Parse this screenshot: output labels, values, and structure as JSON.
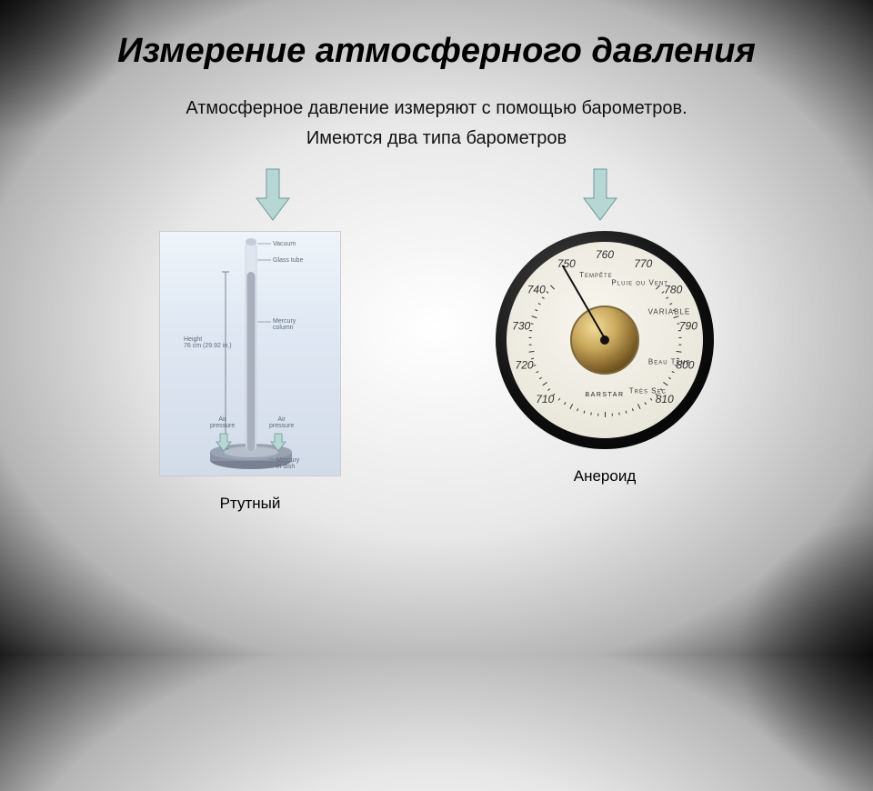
{
  "title": "Измерение атмосферного давления",
  "intro": "Атмосферное давление измеряют с помощью барометров.",
  "sub_intro": "Имеются два типа барометров",
  "colors": {
    "arrow_fill": "#b7d7d4",
    "arrow_stroke": "#6f9995",
    "text": "#000000"
  },
  "arrow": {
    "width": 40,
    "height": 60
  },
  "mercury": {
    "caption": "Ртутный",
    "bg_gradient": [
      "#eef4fa",
      "#dfe8f3",
      "#d2dbe8"
    ],
    "labels": {
      "vacuum": "Vacuum",
      "glass_tube": "Glass tube",
      "mercury_column": "Mercury\ncolumn",
      "height": "Height\n76 cm (29.92 in.)",
      "air_left": "Air\npressure",
      "air_right": "Air\npressure",
      "dish": "Mercury\nin dish"
    },
    "tube": {
      "top_color": "#dfe6ef",
      "mercury_color": "#a8b0bd",
      "cap_color": "#c6cdda"
    }
  },
  "aneroid": {
    "caption": "Анероид",
    "brand": "BARSTAR",
    "needle_angle_deg": 150,
    "dial": {
      "start_value": 710,
      "end_value": 810,
      "step": 10,
      "start_angle_deg": -135,
      "end_angle_deg": 135,
      "radius": 93
    },
    "words": [
      {
        "text": "VARIABLE",
        "angle_deg": 65,
        "radius": 72
      },
      {
        "text": "Beau Temp",
        "angle_deg": 110,
        "radius": 72
      },
      {
        "text": "Très Sec",
        "angle_deg": 142,
        "radius": 72
      },
      {
        "text": "Pluie ou Vent",
        "angle_deg": 30,
        "radius": 72
      },
      {
        "text": "Tempête",
        "angle_deg": -10,
        "radius": 72
      }
    ]
  }
}
